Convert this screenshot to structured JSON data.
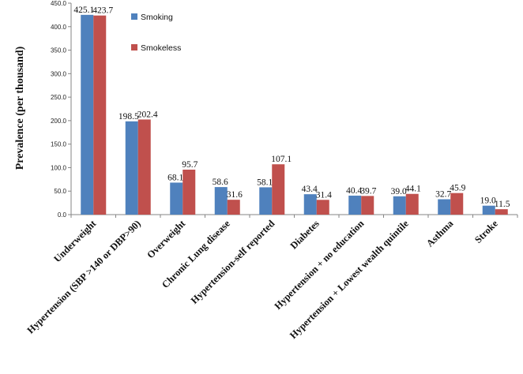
{
  "chart_data": {
    "type": "bar",
    "ylabel": "Prevalence (per thousand)",
    "xlabel": "",
    "ylim": [
      0,
      450
    ],
    "yticks": [
      "0.0",
      "50.0",
      "100.0",
      "150.0",
      "200.0",
      "250.0",
      "300.0",
      "350.0",
      "400.0",
      "450.0"
    ],
    "categories": [
      "Underweight",
      "Hypertension (SBP >140 or DBP>90)",
      "Overweight",
      "Chronic Lung disease",
      "Hypertension-self reported",
      "Diabetes",
      "Hypertension + no education",
      "Hypertension + Lowest wealth quintile",
      "Asthma",
      "Stroke"
    ],
    "series": [
      {
        "name": "Smoking",
        "color": "#4F81BD",
        "values": [
          425.1,
          198.5,
          68.1,
          58.6,
          58.1,
          43.4,
          40.4,
          39.0,
          32.7,
          19.0
        ],
        "labels": [
          "425.1",
          "198.5",
          "68.1",
          "58.6",
          "58.1",
          "43.4",
          "40.4",
          "39.0",
          "32.7",
          "19.0"
        ]
      },
      {
        "name": "Smokeless",
        "color": "#C0504D",
        "values": [
          423.7,
          202.4,
          95.7,
          31.6,
          107.1,
          31.4,
          39.7,
          44.1,
          45.9,
          11.5
        ],
        "labels": [
          "423.7",
          "202.4",
          "95.7",
          "31.6",
          "107.1",
          "31.4",
          "39.7",
          "44.1",
          "45.9",
          "11.5"
        ]
      }
    ],
    "legend": "top-left",
    "grid": false
  }
}
